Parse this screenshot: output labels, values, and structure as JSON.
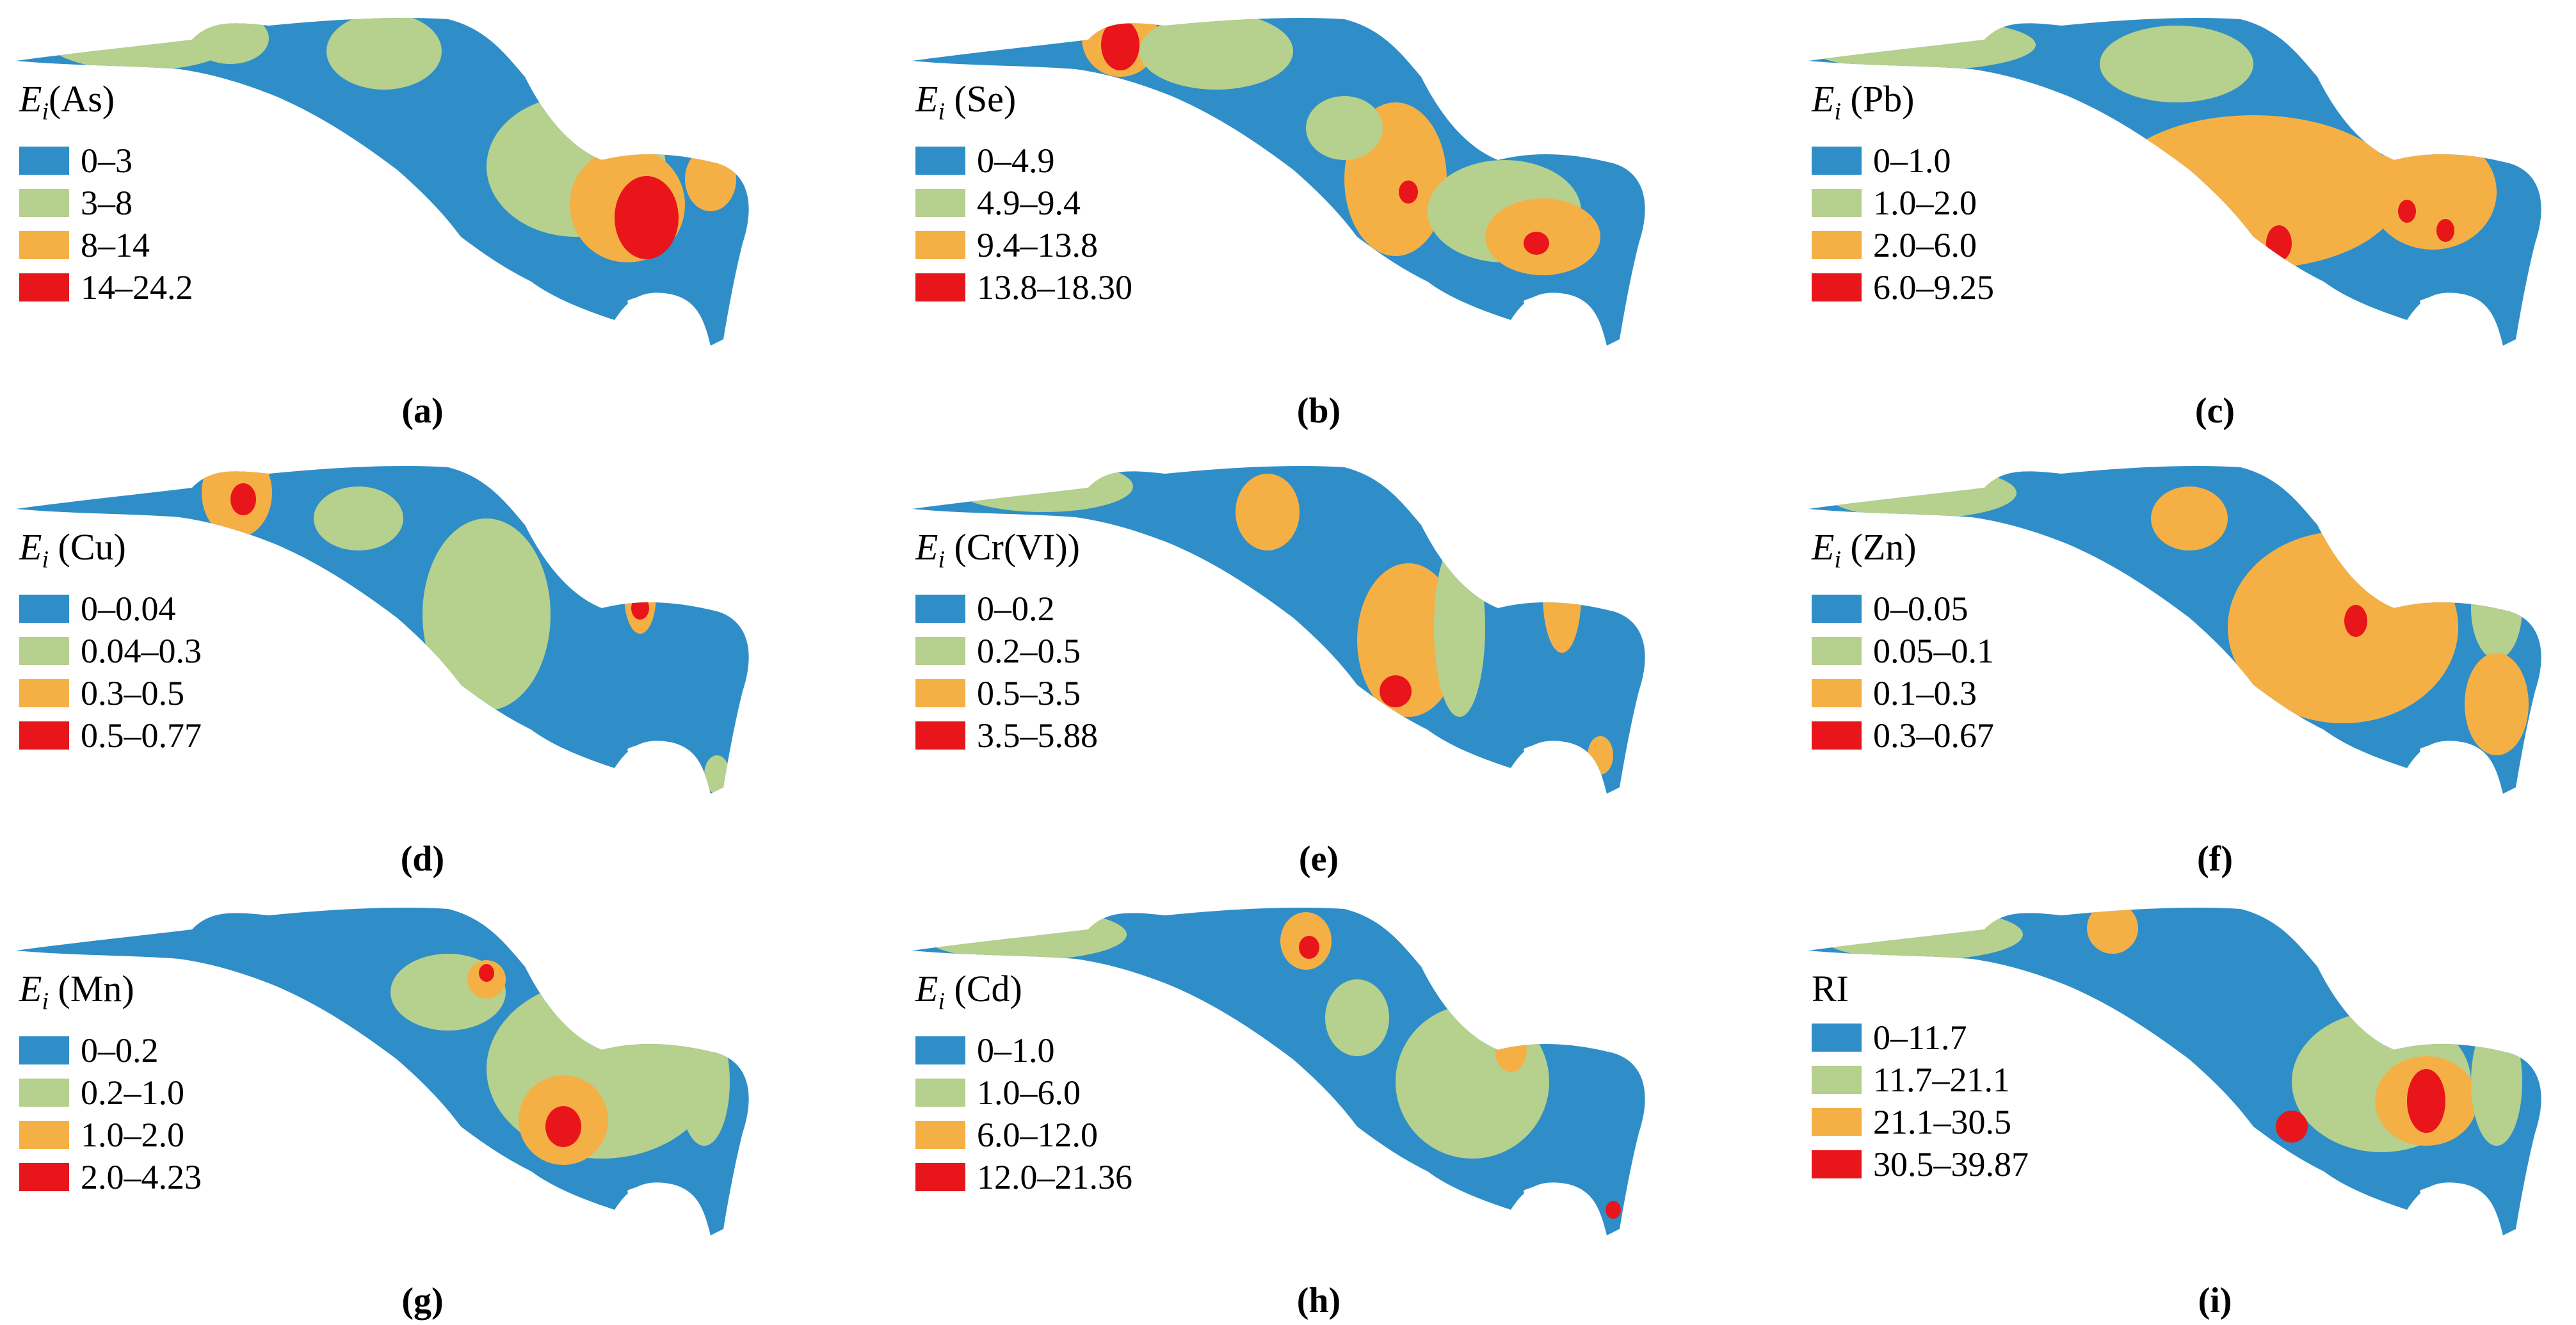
{
  "colors": {
    "class1": "#2f8ec8",
    "class2": "#b6d08d",
    "class3": "#f5b045",
    "class4": "#e8151b"
  },
  "panels": [
    {
      "label": "(a)",
      "symbol": "E",
      "subscript": "i",
      "element": "(As)",
      "classes": [
        "0–3",
        "3–8",
        "8–14",
        "14–24.2"
      ]
    },
    {
      "label": "(b)",
      "symbol": "E",
      "subscript": "i",
      "element": " (Se)",
      "classes": [
        "0–4.9",
        "4.9–9.4",
        "9.4–13.8",
        "13.8–18.30"
      ]
    },
    {
      "label": "(c)",
      "symbol": "E",
      "subscript": "i",
      "element": " (Pb)",
      "classes": [
        "0–1.0",
        "1.0–2.0",
        "2.0–6.0",
        "6.0–9.25"
      ]
    },
    {
      "label": "(d)",
      "symbol": "E",
      "subscript": "i",
      "element": " (Cu)",
      "classes": [
        "0–0.04",
        "0.04–0.3",
        "0.3–0.5",
        "0.5–0.77"
      ]
    },
    {
      "label": "(e)",
      "symbol": "E",
      "subscript": "i",
      "element": " (Cr(VI))",
      "classes": [
        "0–0.2",
        "0.2–0.5",
        "0.5–3.5",
        "3.5–5.88"
      ]
    },
    {
      "label": "(f)",
      "symbol": "E",
      "subscript": "i",
      "element": " (Zn)",
      "classes": [
        "0–0.05",
        "0.05–0.1",
        "0.1–0.3",
        "0.3–0.67"
      ]
    },
    {
      "label": "(g)",
      "symbol": "E",
      "subscript": "i",
      "element": " (Mn)",
      "classes": [
        "0–0.2",
        "0.2–1.0",
        "1.0–2.0",
        "2.0–4.23"
      ]
    },
    {
      "label": "(h)",
      "symbol": "E",
      "subscript": "i",
      "element": " (Cd)",
      "classes": [
        "0–1.0",
        "1.0–6.0",
        "6.0–12.0",
        "12.0–21.36"
      ]
    },
    {
      "label": "(i)",
      "symbol": "RI",
      "subscript": "",
      "element": "",
      "classes": [
        "0–11.7",
        "11.7–21.1",
        "21.1–30.5",
        "30.5–39.87"
      ]
    }
  ]
}
